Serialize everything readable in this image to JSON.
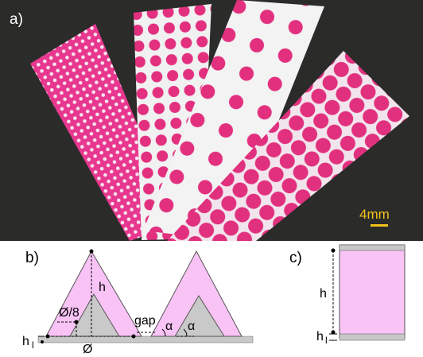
{
  "panel_a": {
    "label": "a)",
    "scale_bar": "4mm"
  },
  "panel_b": {
    "label": "b)",
    "diameter_eighth": "Ø/8",
    "height": "h",
    "gap": "gap",
    "angle_1": "α",
    "angle_2": "α",
    "diameter": "Ø",
    "base_height": "h",
    "base_height_subscript": "l"
  },
  "panel_c": {
    "label": "c)",
    "height": "h",
    "base_height": "h",
    "base_height_subscript": "l"
  }
}
